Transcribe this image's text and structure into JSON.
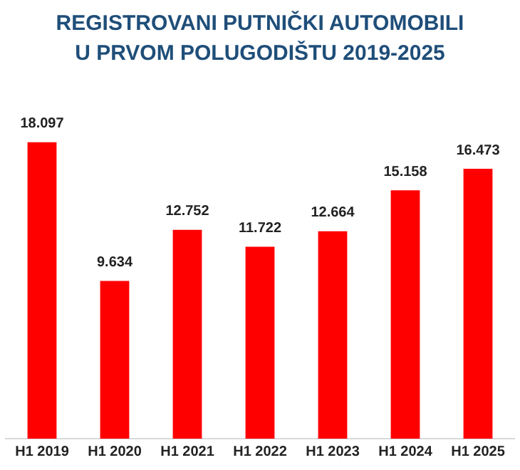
{
  "chart_data": {
    "type": "bar",
    "title": "REGISTROVANI PUTNIČKI AUTOMOBILI\nU PRVOM POLUGODIŠTU 2019-2025",
    "categories": [
      "H1 2019",
      "H1 2020",
      "H1 2021",
      "H1 2022",
      "H1 2023",
      "H1 2024",
      "H1 2025"
    ],
    "values": [
      18097,
      9634,
      12752,
      11722,
      12664,
      15158,
      16473
    ],
    "value_labels": [
      "18.097",
      "9.634",
      "12.752",
      "11.722",
      "12.664",
      "15.158",
      "16.473"
    ],
    "color": "#ff0000",
    "grid": false,
    "legend": false
  }
}
